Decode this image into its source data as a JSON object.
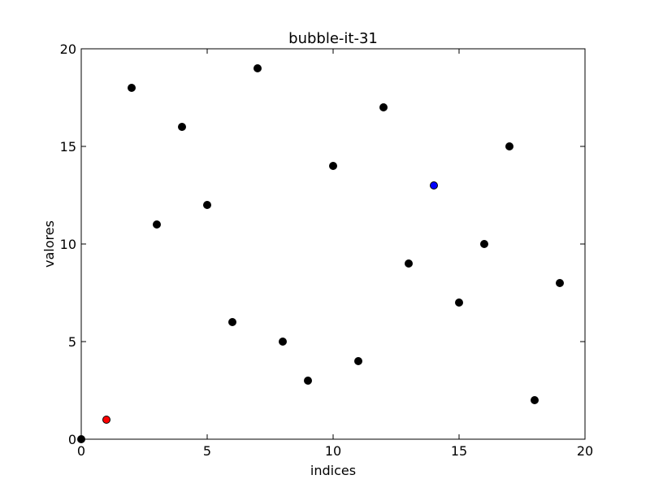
{
  "chart_data": {
    "type": "scatter",
    "title": "bubble-it-31",
    "xlabel": "indices",
    "ylabel": "valores",
    "xlim": [
      0,
      20
    ],
    "ylim": [
      0,
      20
    ],
    "xticks": [
      0,
      5,
      10,
      15,
      20
    ],
    "yticks": [
      0,
      5,
      10,
      15,
      20
    ],
    "grid": false,
    "colors": {
      "default": "#000000",
      "highlight_red": "#ff0000",
      "highlight_blue": "#0000ff"
    },
    "points": [
      {
        "x": 0,
        "y": 0,
        "color": "#000000"
      },
      {
        "x": 1,
        "y": 1,
        "color": "#ff0000"
      },
      {
        "x": 2,
        "y": 18,
        "color": "#000000"
      },
      {
        "x": 3,
        "y": 11,
        "color": "#000000"
      },
      {
        "x": 4,
        "y": 16,
        "color": "#000000"
      },
      {
        "x": 5,
        "y": 12,
        "color": "#000000"
      },
      {
        "x": 6,
        "y": 6,
        "color": "#000000"
      },
      {
        "x": 7,
        "y": 19,
        "color": "#000000"
      },
      {
        "x": 8,
        "y": 5,
        "color": "#000000"
      },
      {
        "x": 9,
        "y": 3,
        "color": "#000000"
      },
      {
        "x": 10,
        "y": 14,
        "color": "#000000"
      },
      {
        "x": 11,
        "y": 4,
        "color": "#000000"
      },
      {
        "x": 12,
        "y": 17,
        "color": "#000000"
      },
      {
        "x": 13,
        "y": 9,
        "color": "#000000"
      },
      {
        "x": 14,
        "y": 13,
        "color": "#0000ff"
      },
      {
        "x": 15,
        "y": 7,
        "color": "#000000"
      },
      {
        "x": 16,
        "y": 10,
        "color": "#000000"
      },
      {
        "x": 17,
        "y": 15,
        "color": "#000000"
      },
      {
        "x": 18,
        "y": 2,
        "color": "#000000"
      },
      {
        "x": 19,
        "y": 8,
        "color": "#000000"
      }
    ]
  }
}
